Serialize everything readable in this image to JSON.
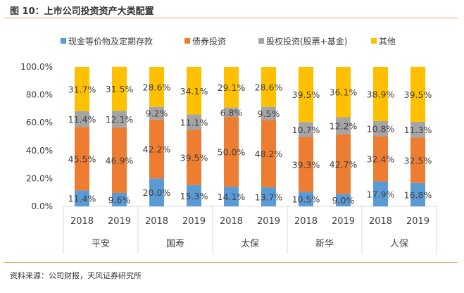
{
  "figure_title": "图 10：上市公司投资资产大类配置",
  "source": "资料来源：公司财报，天风证券研究所",
  "chart_data": {
    "type": "bar",
    "stacked": true,
    "percent": true,
    "groups": [
      "平安",
      "国寿",
      "太保",
      "新华",
      "人保"
    ],
    "categories": [
      "2018",
      "2019",
      "2018",
      "2019",
      "2018",
      "2019",
      "2018",
      "2019",
      "2018",
      "2019"
    ],
    "series": [
      {
        "name": "现金等价物及定期存款",
        "color": "#5B9BD5",
        "values": [
          11.4,
          9.6,
          20.0,
          15.3,
          14.1,
          13.7,
          10.5,
          9.0,
          17.9,
          16.8
        ]
      },
      {
        "name": "债券投资",
        "color": "#ED7D31",
        "values": [
          45.5,
          46.9,
          42.2,
          39.5,
          50.0,
          48.2,
          39.3,
          42.7,
          32.4,
          32.5
        ]
      },
      {
        "name": "股权投资(股票+基金)",
        "color": "#A5A5A5",
        "values": [
          11.4,
          12.1,
          9.2,
          11.1,
          6.8,
          9.5,
          10.7,
          12.2,
          10.8,
          11.3
        ]
      },
      {
        "name": "其他",
        "color": "#FFC000",
        "values": [
          31.7,
          31.5,
          28.6,
          34.1,
          29.1,
          28.6,
          39.5,
          36.1,
          38.9,
          39.5
        ]
      }
    ],
    "yticks": [
      "0.0%",
      "20.0%",
      "40.0%",
      "60.0%",
      "80.0%",
      "100.0%"
    ],
    "ylim": [
      0,
      100
    ],
    "grid": false,
    "legend": "top",
    "data_labels": true
  },
  "colors": {
    "title_rule": "#E8A35A",
    "text": "#404040"
  }
}
